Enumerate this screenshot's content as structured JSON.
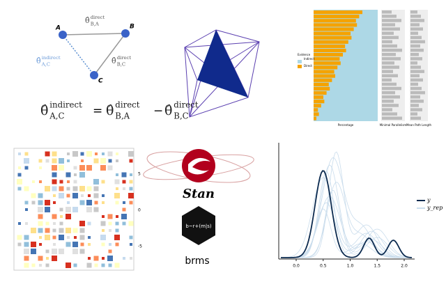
{
  "triangle": {
    "nodes": [
      "A",
      "B",
      "C"
    ],
    "edges": [
      {
        "symbol": "θ̂",
        "sup": "direct",
        "sub": "B,A"
      },
      {
        "symbol": "θ̂",
        "sup": "indirect",
        "sub": "A,C"
      },
      {
        "symbol": "θ̂",
        "sup": "direct",
        "sub": "B,C"
      }
    ],
    "formula": {
      "lhs": {
        "symbol": "θ̂",
        "sup": "indirect",
        "sub": "A,C"
      },
      "eq": "=",
      "t1": {
        "symbol": "θ̂",
        "sup": "direct",
        "sub": "B,A"
      },
      "minus": "−",
      "t2": {
        "symbol": "θ̂",
        "sup": "direct",
        "sub": "B,C"
      }
    }
  },
  "evidence_chart": {
    "legend_title": "Evidence",
    "legend": [
      "Indirect",
      "Direct"
    ],
    "axis_titles": [
      "Percentage",
      "Minimal Parallelism",
      "Mean Path Length"
    ]
  },
  "heatmap": {
    "scale": [
      "5",
      "0",
      "-5"
    ]
  },
  "logos": {
    "stan": "Stan",
    "formula": "b~r+(m|s)",
    "brms": "brms"
  },
  "density": {
    "xticks": [
      "0.0",
      "0.5",
      "1.0",
      "1.5",
      "2.0"
    ],
    "legend": [
      "y",
      "y_rep"
    ]
  }
}
